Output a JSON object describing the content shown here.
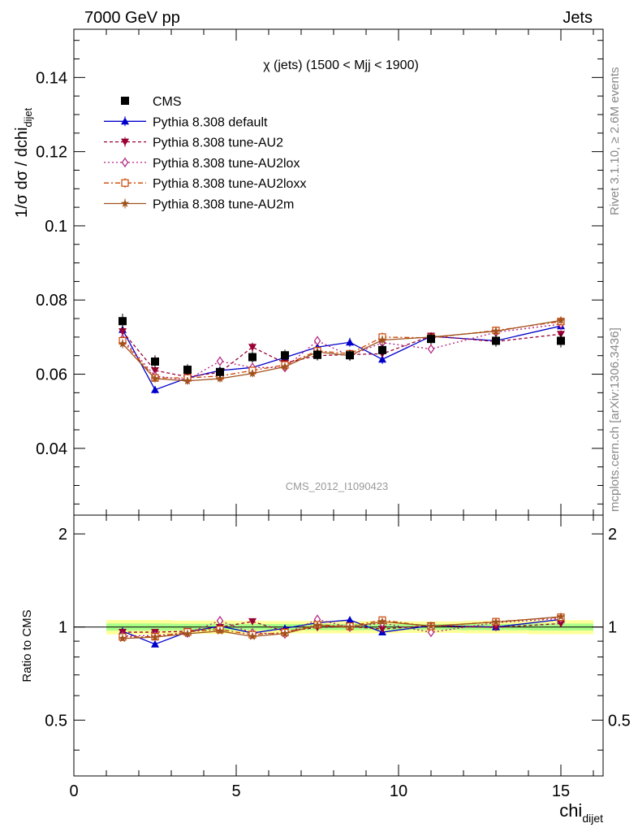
{
  "header": {
    "left": "7000 GeV pp",
    "right": "Jets"
  },
  "side_labels": {
    "rivet": "Rivet 3.1.10, ≥ 2.6M events",
    "mcplots": "mcplots.cern.ch [arXiv:1306.3436]"
  },
  "watermark": "CMS_2012_I1090423",
  "chart_data": {
    "type": "line",
    "title": "χ (jets) (1500 < Mjj < 1900)",
    "xlabel": "chi",
    "xlabel_sub": "dijet",
    "ylabel": "1/σ dσ / dchi",
    "ylabel_sub": "dijet",
    "xlim": [
      0,
      16.3
    ],
    "ylim": [
      0.022,
      0.153
    ],
    "ratio_ylim": [
      0.33,
      2.3
    ],
    "ratio_ylabel": "Ratio to CMS",
    "x_ticks": [
      "0",
      "5",
      "10",
      "15"
    ],
    "y_ticks": [
      "0.04",
      "0.06",
      "0.08",
      "0.1",
      "0.12",
      "0.14"
    ],
    "ratio_ticks": [
      "0.5",
      "1",
      "2"
    ],
    "x": [
      1.5,
      2.5,
      3.5,
      4.5,
      5.5,
      6.5,
      7.5,
      8.5,
      9.5,
      11,
      13,
      15
    ],
    "bin_edges": [
      1,
      2,
      3,
      4,
      5,
      6,
      7,
      8,
      9,
      10,
      12,
      14,
      16
    ],
    "series": [
      {
        "name": "CMS",
        "color": "#000000",
        "marker": "square",
        "dash": "",
        "values": [
          0.0743,
          0.0634,
          0.0612,
          0.0606,
          0.0646,
          0.0651,
          0.0652,
          0.0651,
          0.0665,
          0.0695,
          0.069,
          0.069
        ],
        "errors": [
          0.002,
          0.0017,
          0.0015,
          0.0015,
          0.0015,
          0.0015,
          0.0015,
          0.0015,
          0.0015,
          0.0015,
          0.0016,
          0.0018
        ]
      },
      {
        "name": "Pythia 8.308 default",
        "color": "#0000cc",
        "marker": "triangle",
        "dash": "",
        "values": [
          0.072,
          0.0558,
          0.059,
          0.061,
          0.0618,
          0.0645,
          0.0673,
          0.0686,
          0.064,
          0.0702,
          0.069,
          0.073
        ],
        "errors": [
          0.0012,
          0.001,
          0.001,
          0.001,
          0.001,
          0.001,
          0.0012,
          0.0012,
          0.0012,
          0.001,
          0.001,
          0.001
        ]
      },
      {
        "name": "Pythia 8.308 tune-AU2",
        "color": "#990033",
        "marker": "triangle-down",
        "dash": "4,3",
        "values": [
          0.0715,
          0.061,
          0.0593,
          0.0605,
          0.0673,
          0.063,
          0.065,
          0.0653,
          0.0655,
          0.0703,
          0.0688,
          0.0708
        ],
        "errors": [
          0.0012,
          0.001,
          0.001,
          0.001,
          0.0012,
          0.001,
          0.0012,
          0.001,
          0.001,
          0.001,
          0.001,
          0.001
        ]
      },
      {
        "name": "Pythia 8.308 tune-AU2lox",
        "color": "#b02080",
        "marker": "diamond",
        "dash": "2,3",
        "values": [
          0.0695,
          0.0595,
          0.0585,
          0.0635,
          0.0618,
          0.0618,
          0.069,
          0.065,
          0.0685,
          0.0668,
          0.0713,
          0.0735
        ],
        "errors": [
          0.0012,
          0.001,
          0.001,
          0.0012,
          0.001,
          0.001,
          0.0012,
          0.001,
          0.0012,
          0.001,
          0.001,
          0.001
        ]
      },
      {
        "name": "Pythia 8.308 tune-AU2loxx",
        "color": "#cc4400",
        "marker": "square-open",
        "dash": "6,3,2,3",
        "values": [
          0.069,
          0.059,
          0.059,
          0.0595,
          0.061,
          0.0625,
          0.0663,
          0.0655,
          0.07,
          0.0698,
          0.0718,
          0.0742
        ],
        "errors": [
          0.0012,
          0.001,
          0.001,
          0.001,
          0.001,
          0.001,
          0.0012,
          0.001,
          0.0012,
          0.001,
          0.001,
          0.001
        ]
      },
      {
        "name": "Pythia 8.308 tune-AU2m",
        "color": "#a0521e",
        "marker": "star",
        "dash": "",
        "values": [
          0.0682,
          0.0588,
          0.0582,
          0.0588,
          0.0602,
          0.062,
          0.066,
          0.065,
          0.0692,
          0.07,
          0.0716,
          0.0745
        ],
        "errors": [
          0.0012,
          0.001,
          0.001,
          0.001,
          0.001,
          0.001,
          0.0012,
          0.001,
          0.0012,
          0.001,
          0.001,
          0.001
        ]
      }
    ]
  }
}
